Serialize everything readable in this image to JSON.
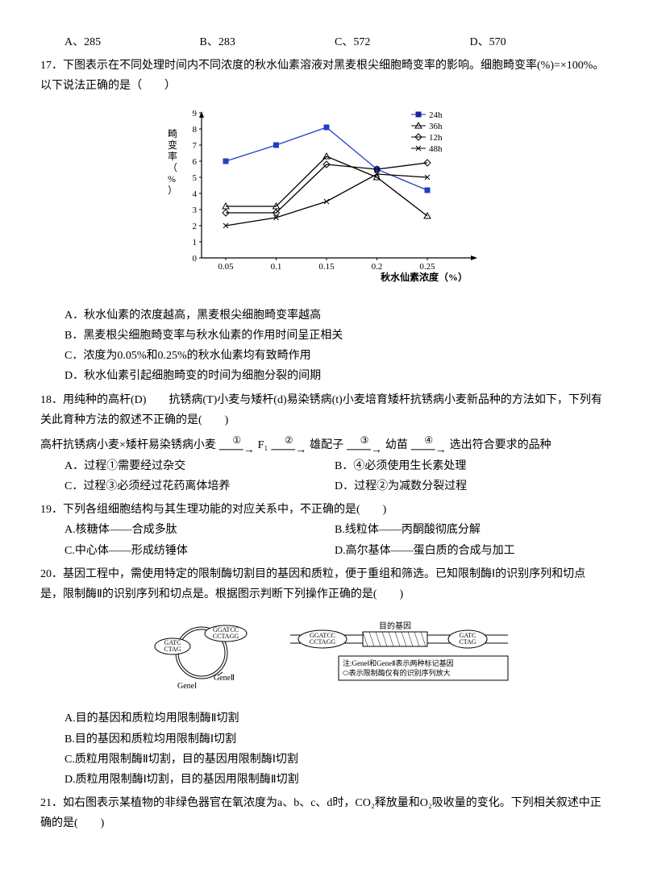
{
  "q16_options": {
    "a": "A、285",
    "b": "B、283",
    "c": "C、572",
    "d": "D、570"
  },
  "q17": {
    "stem": "17．下图表示在不同处理时间内不同浓度的秋水仙素溶液对黑麦根尖细胞畸变率的影响。细胞畸变率(%)=×100%。以下说法正确的是（　　）",
    "chart": {
      "ylabel": "畸变率（%）",
      "xlabel": "秋水仙素浓度（%）",
      "yticks": [
        0,
        1,
        2,
        3,
        4,
        5,
        6,
        7,
        8,
        9
      ],
      "xticks": [
        "0.05",
        "0.1",
        "0.15",
        "0.2",
        "0.25"
      ],
      "legend": [
        {
          "label": "24h",
          "marker": "square",
          "color": "#2020a0"
        },
        {
          "label": "36h",
          "marker": "triangle",
          "color": "#000"
        },
        {
          "label": "12h",
          "marker": "diamond",
          "color": "#000"
        },
        {
          "label": "48h",
          "marker": "cross",
          "color": "#000"
        }
      ],
      "series": {
        "s24": {
          "color": "#2040c0",
          "marker": "square",
          "pts": [
            [
              0.05,
              6.0
            ],
            [
              0.1,
              7.0
            ],
            [
              0.15,
              8.1
            ],
            [
              0.2,
              5.5
            ],
            [
              0.25,
              4.2
            ]
          ]
        },
        "s36": {
          "color": "#000",
          "marker": "triangle",
          "pts": [
            [
              0.05,
              3.2
            ],
            [
              0.1,
              3.2
            ],
            [
              0.15,
              6.3
            ],
            [
              0.2,
              5.0
            ],
            [
              0.25,
              2.6
            ]
          ]
        },
        "s12": {
          "color": "#000",
          "marker": "diamond",
          "pts": [
            [
              0.05,
              2.8
            ],
            [
              0.1,
              2.8
            ],
            [
              0.15,
              5.8
            ],
            [
              0.2,
              5.5
            ],
            [
              0.25,
              5.9
            ]
          ]
        },
        "s48": {
          "color": "#000",
          "marker": "cross",
          "pts": [
            [
              0.05,
              2.0
            ],
            [
              0.1,
              2.5
            ],
            [
              0.15,
              3.5
            ],
            [
              0.2,
              5.2
            ],
            [
              0.25,
              5.0
            ]
          ]
        }
      }
    },
    "options": {
      "a": "A．秋水仙素的浓度越高，黑麦根尖细胞畸变率越高",
      "b": "B．黑麦根尖细胞畸变率与秋水仙素的作用时间呈正相关",
      "c": "C．浓度为0.05%和0.25%的秋水仙素均有致畸作用",
      "d": "D．秋水仙素引起细胞畸变的时间为细胞分裂的间期"
    }
  },
  "q18": {
    "stem": "18．用纯种的高杆(D)　　抗锈病(T)小麦与矮杆(d)易染锈病(t)小麦培育矮杆抗锈病小麦新品种的方法如下，下列有关此育种方法的叙述不正确的是(　　)",
    "flow_prefix": "高杆抗锈病小麦×矮杆易染锈病小麦",
    "flow_parts": [
      "F₁",
      "雄配子",
      "幼苗",
      "选出符合要求的品种"
    ],
    "flow_nums": [
      "①",
      "②",
      "③",
      "④"
    ],
    "options": {
      "a": "A．过程①需要经过杂交",
      "b": "B．④必须使用生长素处理",
      "c": "C．过程③必须经过花药离体培养",
      "d": "D．过程②为减数分裂过程"
    }
  },
  "q19": {
    "stem": "19．下列各组细胞结构与其生理功能的对应关系中，不正确的是(　　)",
    "options": {
      "a": "A.核糖体——合成多肽",
      "b": "B.线粒体——丙酮酸彻底分解",
      "c": "C.中心体——形成纺锤体",
      "d": "D.高尔基体——蛋白质的合成与加工"
    }
  },
  "q20": {
    "stem": "20．基因工程中，需使用特定的限制酶切割目的基因和质粒，便于重组和筛选。已知限制酶Ⅰ的识别序列和切点是，限制酶Ⅱ的识别序列和切点是。根据图示判断下列操作正确的是(　　)",
    "diagram": {
      "plasmid_sites": [
        "GATC",
        "CTAG",
        "GGATCC",
        "CCTAGG"
      ],
      "genes": [
        "GeneⅠ",
        "GeneⅡ"
      ],
      "target_label": "目的基因",
      "target_sites": [
        "GGATCC",
        "CCTAGG",
        "GATC",
        "CTAG"
      ],
      "note1": "注:GeneⅠ和GeneⅡ表示两种标记基因",
      "note2": "⬭表示限制酶仅有的识别序列放大"
    },
    "options": {
      "a": "A.目的基因和质粒均用限制酶Ⅱ切割",
      "b": "B.目的基因和质粒均用限制酶Ⅰ切割",
      "c": "C.质粒用限制酶Ⅱ切割，目的基因用限制酶Ⅰ切割",
      "d": "D.质粒用限制酶Ⅰ切割，目的基因用限制酶Ⅱ切割"
    }
  },
  "q21": {
    "stem": "21．如右图表示某植物的非绿色器官在氧浓度为a、b、c、d时，CO₂释放量和O₂吸收量的变化。下列相关叙述中正确的是(　　)"
  }
}
